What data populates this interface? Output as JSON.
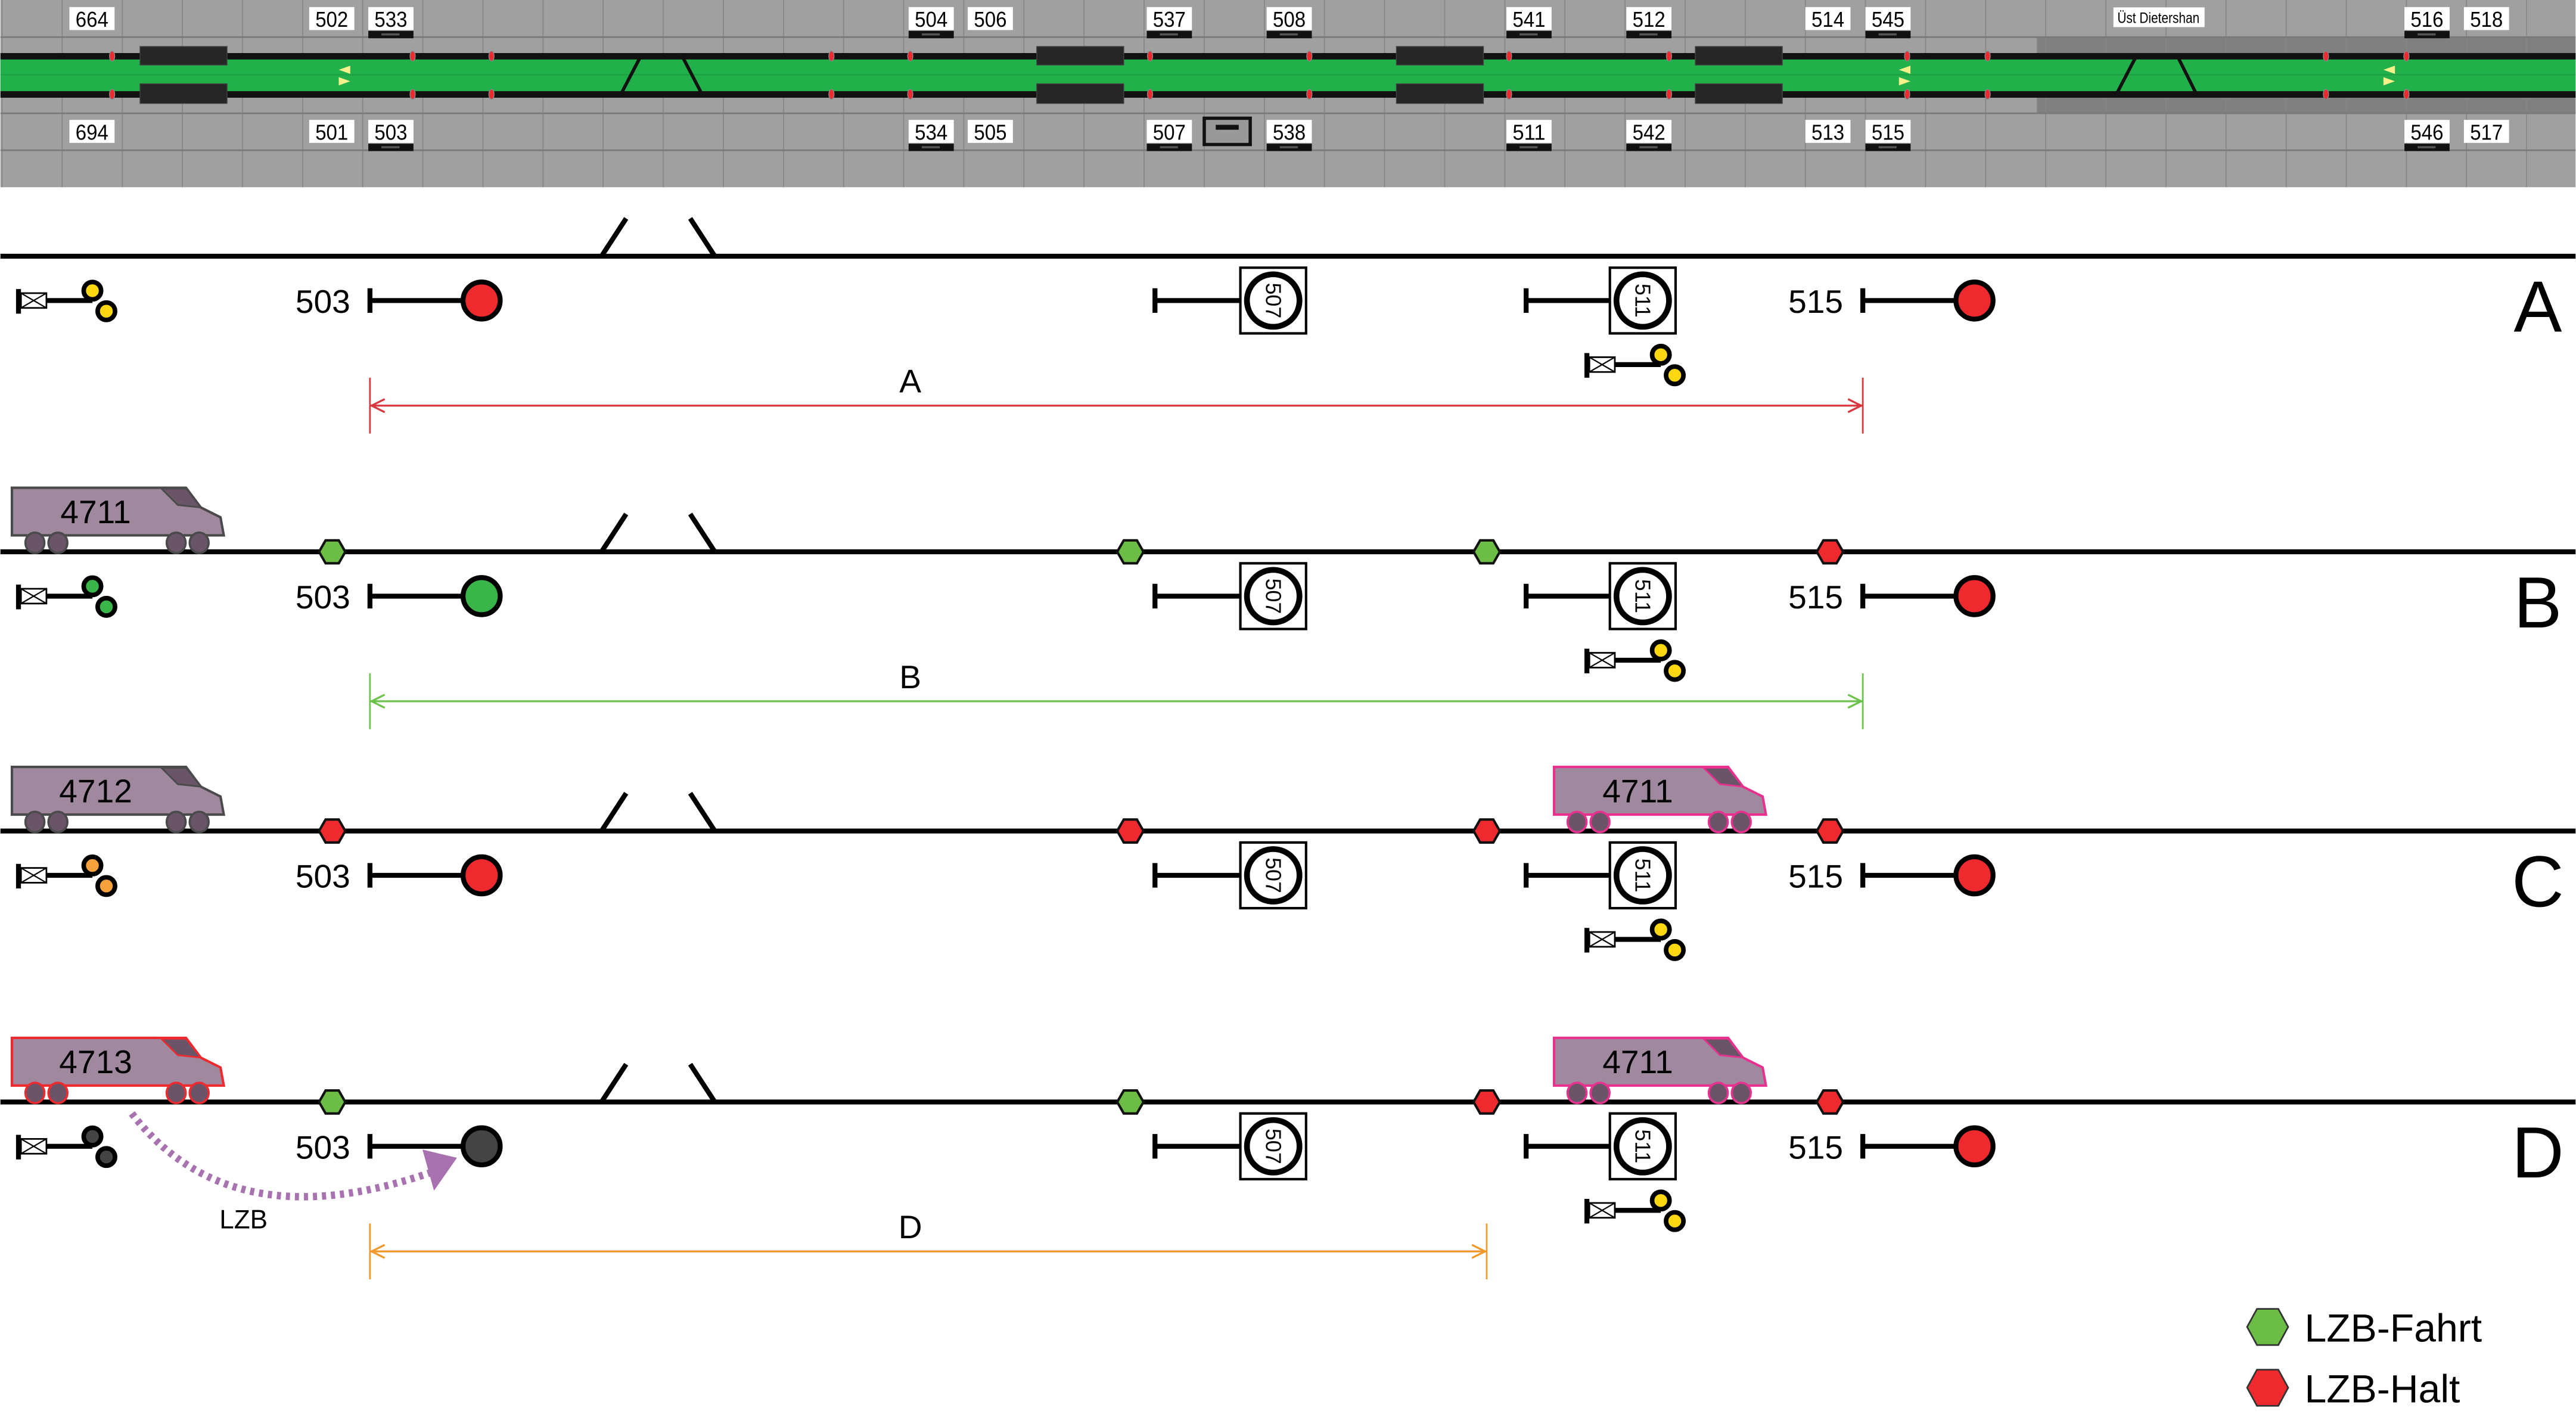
{
  "panel": {
    "station_label": "Üst Dietershan",
    "top_labels": [
      {
        "text": "664",
        "underbar": false
      },
      {
        "text": "502",
        "underbar": false
      },
      {
        "text": "533",
        "underbar": true
      },
      {
        "text": "504",
        "underbar": true
      },
      {
        "text": "506",
        "underbar": false
      },
      {
        "text": "537",
        "underbar": true
      },
      {
        "text": "508",
        "underbar": true
      },
      {
        "text": "541",
        "underbar": true
      },
      {
        "text": "512",
        "underbar": true
      },
      {
        "text": "514",
        "underbar": false
      },
      {
        "text": "545",
        "underbar": true
      },
      {
        "text": "516",
        "underbar": true
      },
      {
        "text": "518",
        "underbar": false
      }
    ],
    "bottom_labels": [
      {
        "text": "694",
        "underbar": false
      },
      {
        "text": "501",
        "underbar": false
      },
      {
        "text": "503",
        "underbar": true
      },
      {
        "text": "534",
        "underbar": true
      },
      {
        "text": "505",
        "underbar": false
      },
      {
        "text": "507",
        "underbar": true
      },
      {
        "text": "538",
        "underbar": true
      },
      {
        "text": "511",
        "underbar": true
      },
      {
        "text": "542",
        "underbar": true
      },
      {
        "text": "513",
        "underbar": false
      },
      {
        "text": "515",
        "underbar": true
      },
      {
        "text": "546",
        "underbar": true
      },
      {
        "text": "517",
        "underbar": false
      }
    ]
  },
  "colors": {
    "panel_bg": "#a0a0a0",
    "panel_dark": "#808080",
    "track_green": "#22b04b",
    "signal_red": "#ee2a2f",
    "signal_green": "#3ab54a",
    "signal_yellow": "#fdd70f",
    "signal_orange": "#f6a13c",
    "signal_dark": "#444444",
    "lzb_fahrt": "#6cbd45",
    "lzb_halt": "#ee2a2f",
    "train_body": "#a0899e",
    "train_dark": "#6a5468",
    "train_outline": "#4a4a4a",
    "train_outline_red": "#ee2a2f",
    "train_outline_pink": "#e8318f",
    "lzb_arrow": "#a872b0",
    "distance_red": "#d9363e",
    "distance_green": "#6cc24a",
    "distance_orange": "#f0982a"
  },
  "diagram": {
    "main_signal_start": "503",
    "main_signal_end": "515",
    "speed_signs": [
      "507",
      "511"
    ],
    "rows": [
      {
        "letter": "A",
        "prelim_signal_color": "yellow",
        "signal_503_color": "red",
        "signal_515_color": "red",
        "lzb_markers": [],
        "trains": [],
        "distance": {
          "label": "A",
          "from": "503",
          "to": "515",
          "color": "red"
        },
        "lzb_arrow": null
      },
      {
        "letter": "B",
        "prelim_signal_color": "green",
        "signal_503_color": "green",
        "signal_515_color": "red",
        "lzb_markers": [
          "fahrt",
          "fahrt",
          "fahrt",
          "halt"
        ],
        "trains": [
          {
            "number": "4711",
            "position": "start",
            "outline": "normal"
          }
        ],
        "distance": {
          "label": "B",
          "from": "503",
          "to": "515",
          "color": "green"
        },
        "lzb_arrow": null
      },
      {
        "letter": "C",
        "prelim_signal_color": "orange",
        "signal_503_color": "red",
        "signal_515_color": "red",
        "lzb_markers": [
          "halt",
          "halt",
          "halt",
          "halt"
        ],
        "trains": [
          {
            "number": "4712",
            "position": "start",
            "outline": "normal"
          },
          {
            "number": "4711",
            "position": "at-511",
            "outline": "pink"
          }
        ],
        "distance": null,
        "lzb_arrow": null
      },
      {
        "letter": "D",
        "prelim_signal_color": "dark",
        "signal_503_color": "dark",
        "signal_515_color": "red",
        "lzb_markers": [
          "fahrt",
          "fahrt",
          "halt",
          "halt"
        ],
        "trains": [
          {
            "number": "4713",
            "position": "start",
            "outline": "red"
          },
          {
            "number": "4711",
            "position": "at-511",
            "outline": "pink"
          }
        ],
        "distance": {
          "label": "D",
          "from": "503",
          "to": "511",
          "color": "orange"
        },
        "lzb_arrow": {
          "label": "LZB"
        }
      }
    ]
  },
  "legend": {
    "items": [
      {
        "label": "LZB-Fahrt",
        "type": "fahrt"
      },
      {
        "label": "LZB-Halt",
        "type": "halt"
      }
    ]
  }
}
